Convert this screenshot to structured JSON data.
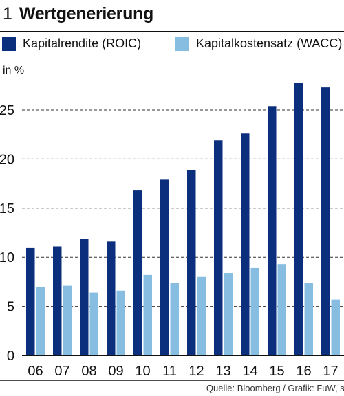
{
  "header": {
    "number": "1",
    "title": "Wertgenerierung"
  },
  "source": "Quelle: Bloomberg / Grafik: FuW, sp",
  "colors": {
    "roic": "#0b2f7d",
    "wacc": "#86bde0",
    "grid": "#333333"
  },
  "chart_data": {
    "type": "bar",
    "title": "Wertgenerierung",
    "ylabel": "in %",
    "xlabel": "",
    "ylim": [
      0,
      28.5
    ],
    "yticks": [
      0,
      5,
      10,
      15,
      20,
      25
    ],
    "grid": true,
    "legend_position": "top",
    "categories": [
      "06",
      "07",
      "08",
      "09",
      "10",
      "11",
      "12",
      "13",
      "14",
      "15",
      "16",
      "17"
    ],
    "series": [
      {
        "name": "Kapitalrendite (ROIC)",
        "values": [
          11.0,
          11.1,
          11.9,
          11.6,
          16.8,
          17.9,
          18.9,
          21.9,
          22.6,
          25.4,
          27.8,
          27.3
        ]
      },
      {
        "name": "Kapitalkostensatz (WACC)",
        "values": [
          7.0,
          7.1,
          6.4,
          6.6,
          8.2,
          7.4,
          8.0,
          8.4,
          8.9,
          9.3,
          7.4,
          5.7
        ]
      }
    ]
  }
}
